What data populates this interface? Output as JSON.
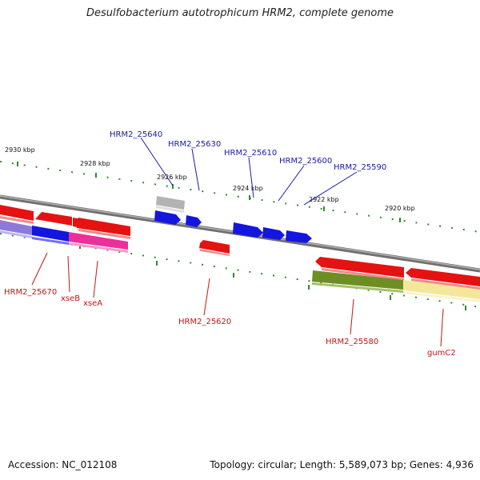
{
  "title": "Desulfobacterium autotrophicum HRM2, complete genome",
  "footer": {
    "accession": "Accession: NC_012108",
    "summary": "Topology: circular; Length: 5,589,073 bp; Genes: 4,936"
  },
  "ticks": [
    "2930 kbp",
    "2928 kbp",
    "2926 kbp",
    "2924 kbp",
    "2922 kbp",
    "2920 kbp"
  ],
  "labels_top": [
    "HRM2_25640",
    "HRM2_25630",
    "HRM2_25610",
    "HRM2_25600",
    "HRM2_25590"
  ],
  "labels_bottom": [
    "HRM2_25670",
    "xseB",
    "xseA",
    "HRM2_25620",
    "HRM2_25580",
    "gumC2"
  ],
  "colors": {
    "backbone": "#888888",
    "tick": "#2e8b2e",
    "forward": "#1515e0",
    "reverse": "#e51212",
    "label_top": "#1a1aa6",
    "label_bottom": "#c41414",
    "grey_gene": "#b3b3b3",
    "purple_gene": "#8d7ad8",
    "magenta_gene": "#ec2f9a",
    "olive_gene": "#6e8e24",
    "khaki_gene": "#f4e79b"
  }
}
